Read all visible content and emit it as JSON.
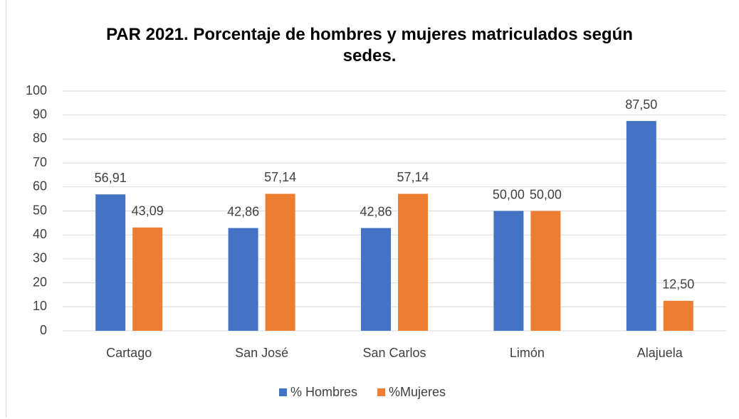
{
  "chart_data": {
    "type": "bar",
    "title": "PAR 2021. Porcentaje de hombres y mujeres matriculados según sedes.",
    "categories": [
      "Cartago",
      "San José",
      "San Carlos",
      "Limón",
      "Alajuela"
    ],
    "series": [
      {
        "name": "% Hombres",
        "color": "#4472c4",
        "values": [
          56.91,
          42.86,
          42.86,
          50.0,
          87.5
        ],
        "value_labels": [
          "56,91",
          "42,86",
          "42,86",
          "50,00",
          "87,50"
        ]
      },
      {
        "name": "%Mujeres",
        "color": "#ed7d31",
        "values": [
          43.09,
          57.14,
          57.14,
          50.0,
          12.5
        ],
        "value_labels": [
          "43,09",
          "57,14",
          "57,14",
          "50,00",
          "12,50"
        ]
      }
    ],
    "ylim": [
      0,
      100
    ],
    "yticks": [
      0,
      10,
      20,
      30,
      40,
      50,
      60,
      70,
      80,
      90,
      100
    ],
    "grid": true,
    "legend": "bottom"
  }
}
